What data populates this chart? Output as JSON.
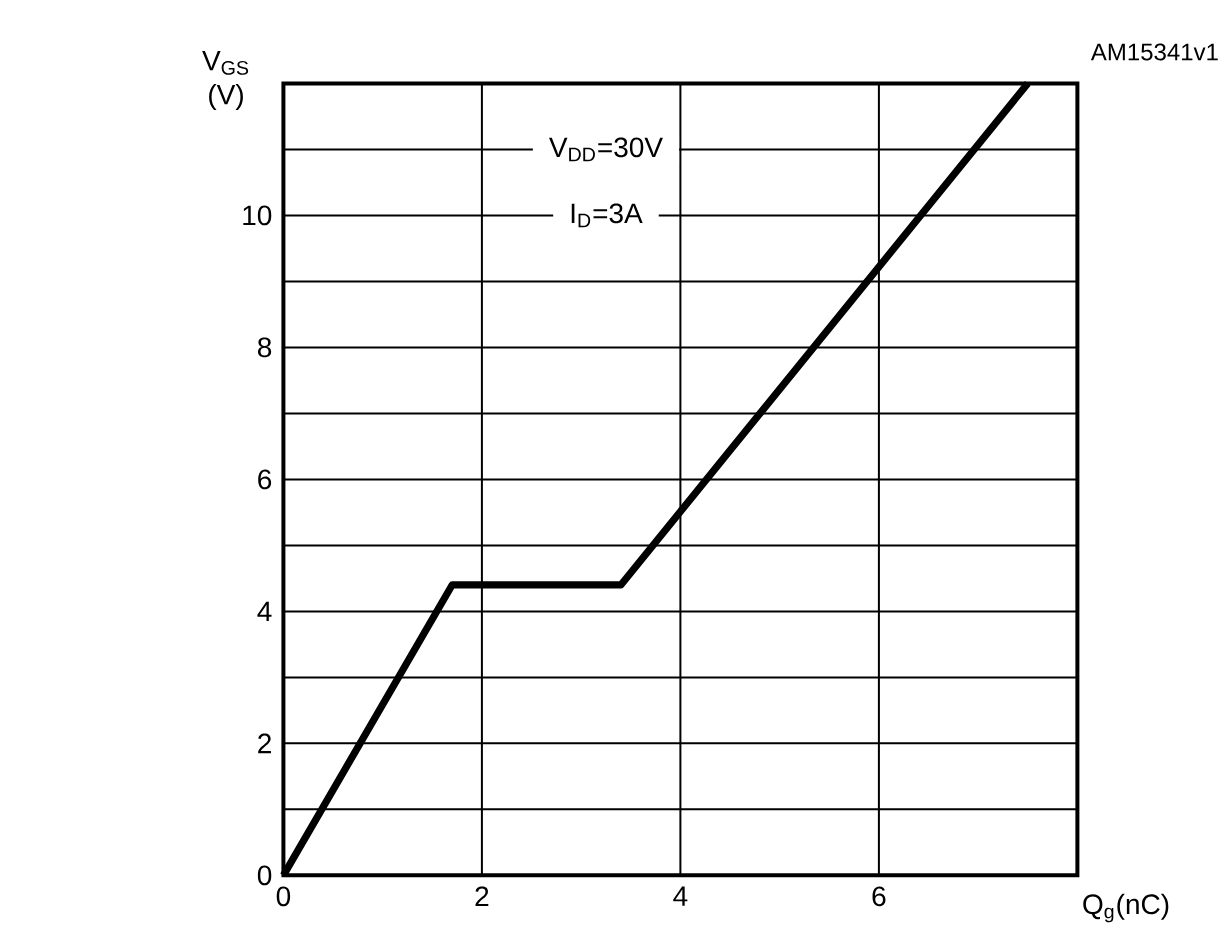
{
  "chart_data": {
    "type": "line",
    "xlabel": "Q$_{g}$(nC)",
    "ylabel": "V$_{GS}$ (V)",
    "annotations": [
      "V$_{DD}$=30V",
      "I$_{D}$=3A",
      "AM15341v1"
    ],
    "x": [
      0,
      1.7,
      3.4,
      7.5
    ],
    "series": [
      {
        "color": "#000000",
        "values": [
          0,
          4.4,
          4.4,
          12
        ]
      }
    ],
    "xlim": [
      0,
      8
    ],
    "ylim": [
      0,
      12
    ],
    "xticks": [
      0,
      2,
      4,
      6
    ],
    "yticks": [
      0,
      {
        "value": 1,
        "label": null
      },
      2,
      {
        "value": 3,
        "label": null
      },
      4,
      {
        "value": 5,
        "label": null
      },
      6,
      {
        "value": 7,
        "label": null
      },
      8,
      {
        "value": 9,
        "label": null
      },
      10,
      {
        "value": 11,
        "label": null
      }
    ],
    "grid": true,
    "marker": "none",
    "line_style": "solid"
  }
}
